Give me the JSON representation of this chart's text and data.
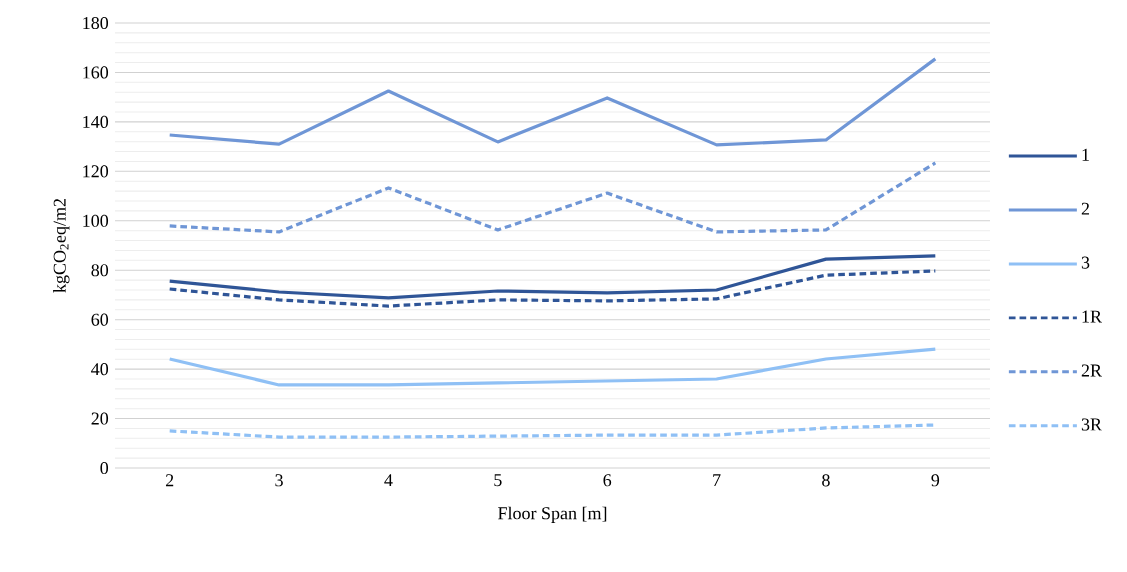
{
  "chart_data": {
    "type": "line",
    "xlabel": "Floor Span [m]",
    "ylabel": "kgCO$_{2}$eq/m2",
    "categories": [
      "2",
      "3",
      "4",
      "5",
      "6",
      "7",
      "8",
      "9"
    ],
    "series": [
      {
        "name": "1",
        "color": "#2f5597",
        "line_style": "solid",
        "values": [
          75.6,
          71.2,
          68.8,
          71.6,
          70.8,
          72,
          84.5,
          85.8
        ]
      },
      {
        "name": "2",
        "color": "#6f96d6",
        "line_style": "solid",
        "values": [
          134.7,
          131,
          152.5,
          131.9,
          149.7,
          130.7,
          132.7,
          165.5
        ]
      },
      {
        "name": "3",
        "color": "#8fc0f5",
        "line_style": "solid",
        "values": [
          44.1,
          33.6,
          33.6,
          34.4,
          35.2,
          36,
          44.1,
          48.1
        ]
      },
      {
        "name": "1R",
        "color": "#2f5597",
        "line_style": "dashed",
        "values": [
          72.4,
          68,
          65.5,
          68,
          67.6,
          68.4,
          78,
          79.7
        ]
      },
      {
        "name": "2R",
        "color": "#6f96d6",
        "line_style": "dashed",
        "values": [
          97.9,
          95.5,
          113.3,
          96.3,
          111.2,
          95.5,
          96.3,
          123.4
        ]
      },
      {
        "name": "3R",
        "color": "#8fc0f5",
        "line_style": "dashed",
        "values": [
          15,
          12.5,
          12.5,
          12.9,
          13.3,
          13.3,
          16.2,
          17.4
        ]
      }
    ],
    "ylim": [
      0,
      180
    ],
    "yticks": [
      0,
      20,
      40,
      60,
      80,
      100,
      120,
      140,
      160,
      180
    ],
    "grid": "y",
    "legend": "right",
    "marker": "none"
  }
}
